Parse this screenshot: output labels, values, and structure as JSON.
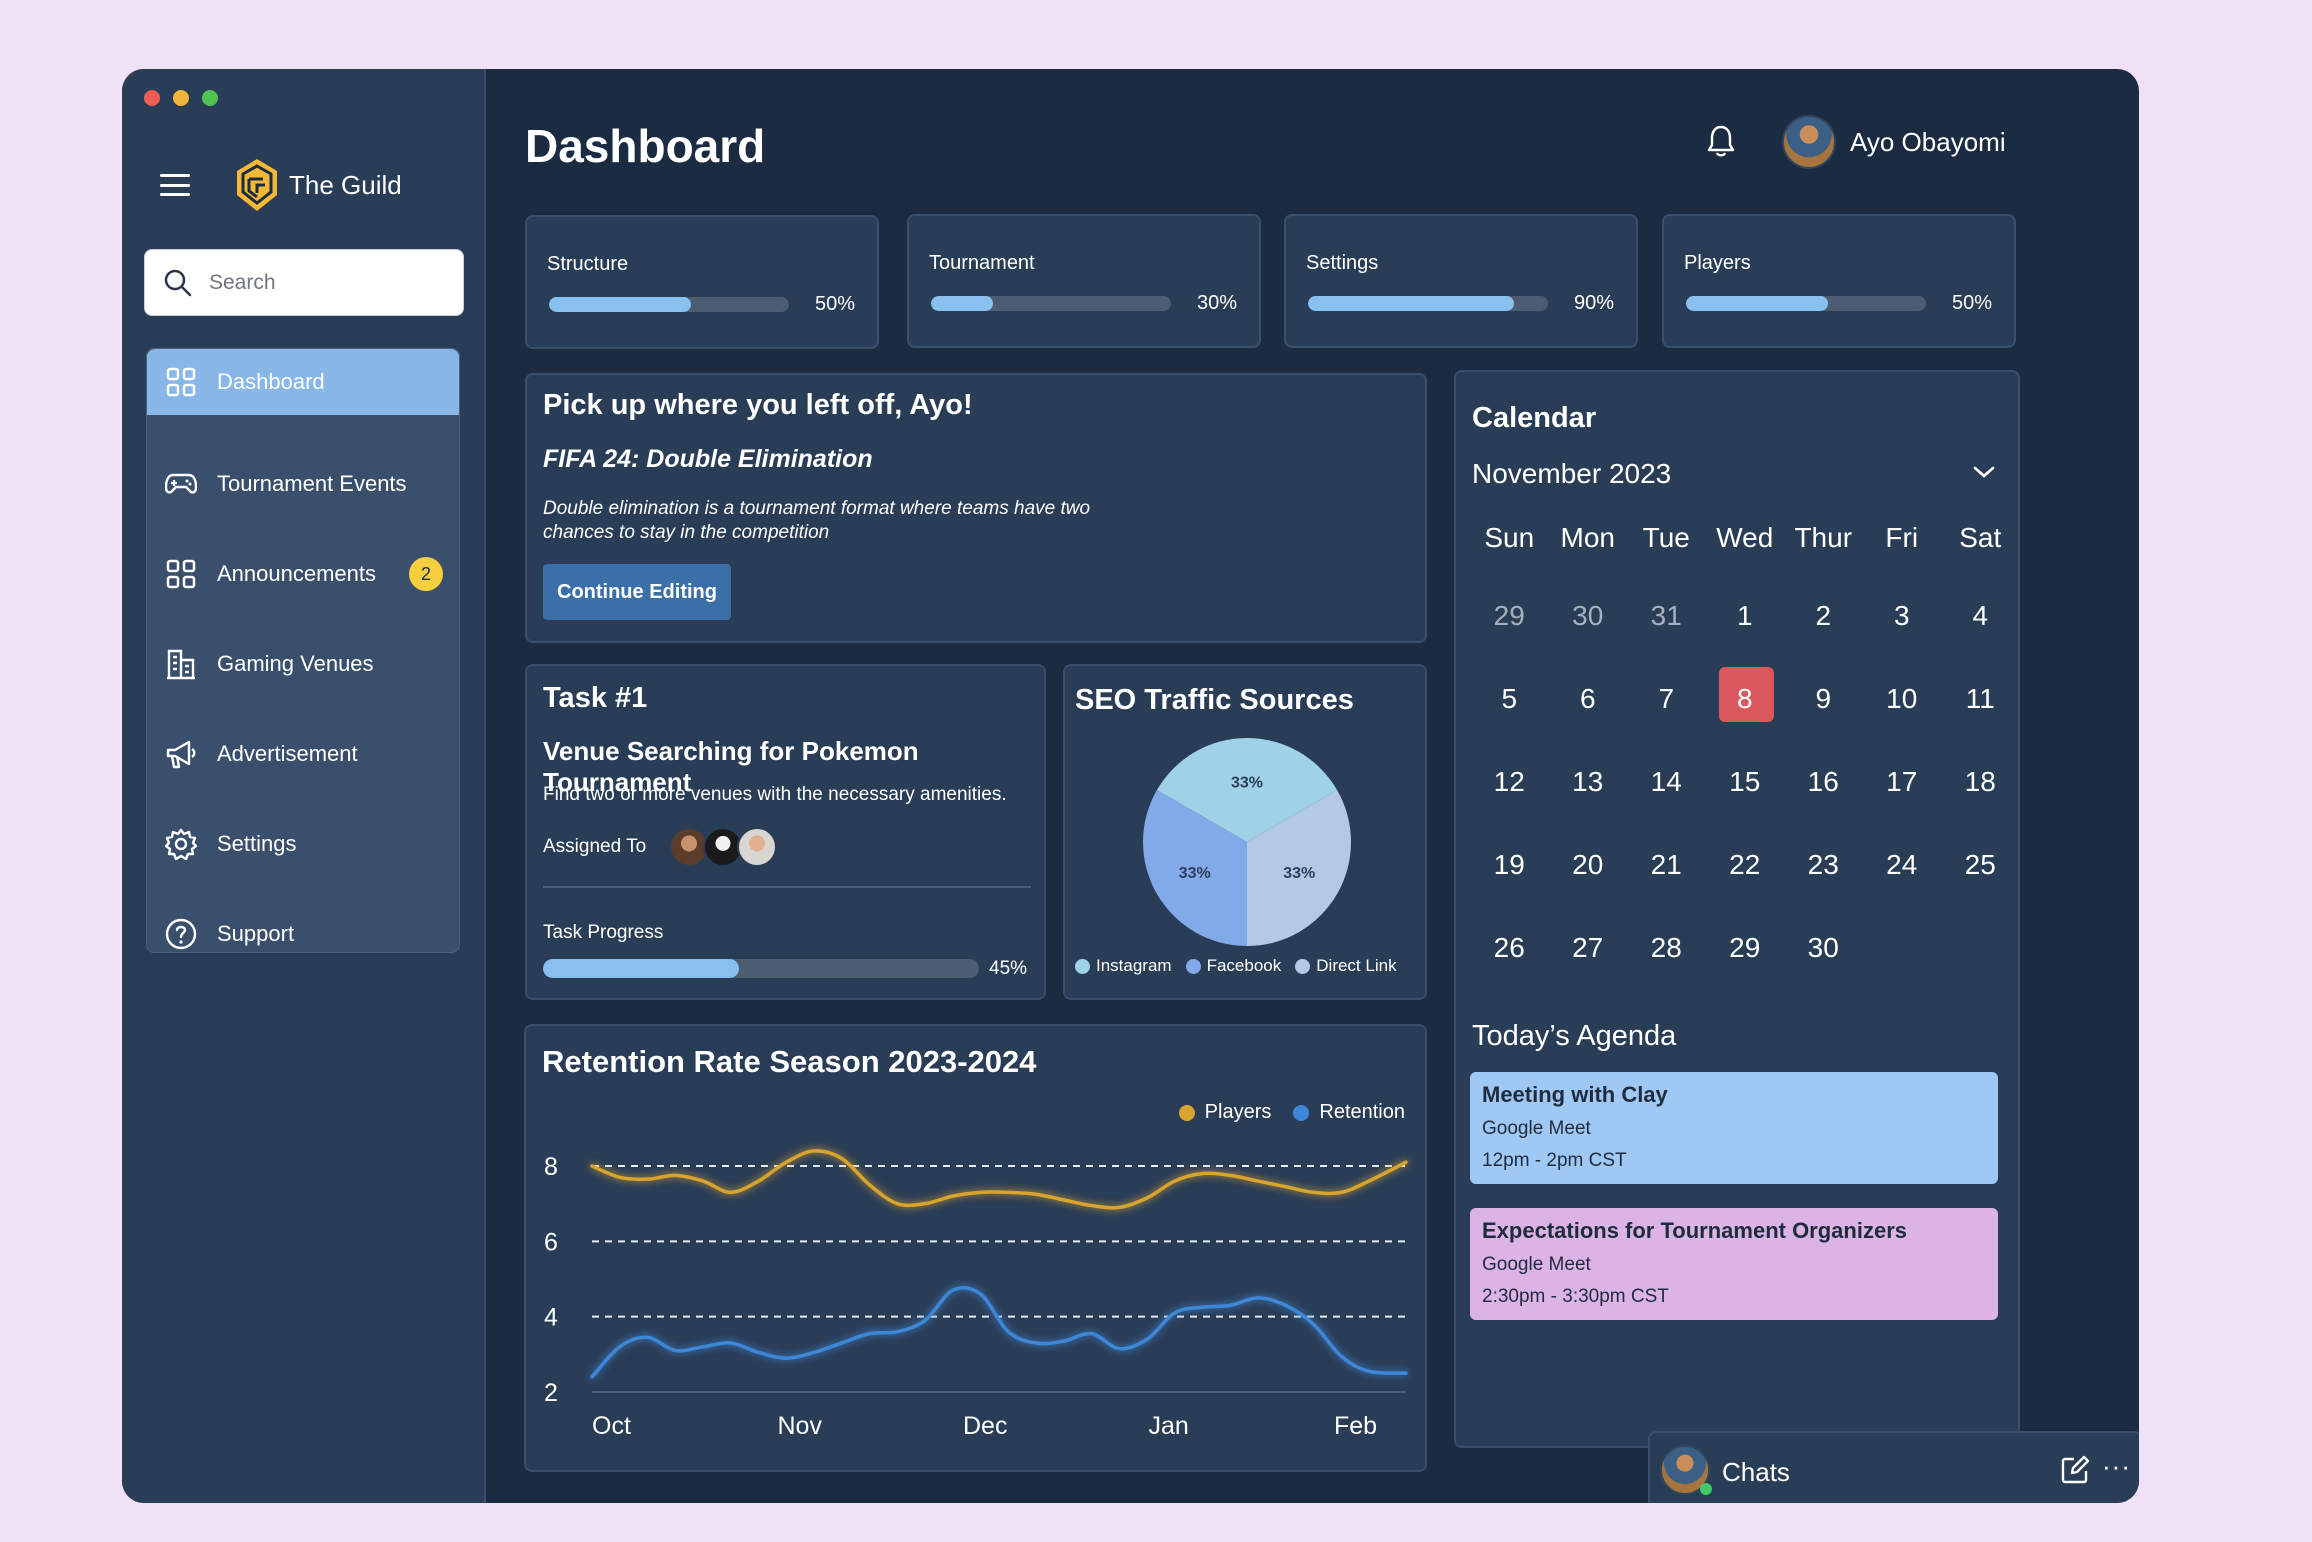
{
  "colors": {
    "accent": "#88b6e6",
    "window_bg": "#1b2b41",
    "card_bg": "#2a3d57",
    "badge": "#f5cf3e",
    "today": "#d8585c",
    "players_line": "#d9a42e",
    "retention_line": "#3e87d8",
    "event1_bg": "#a0c8f4",
    "event2_bg": "#dcb3e5"
  },
  "brand": {
    "name": "The Guild",
    "logo_icon": "guild-shield-logo"
  },
  "search": {
    "placeholder": "Search"
  },
  "sidebar": {
    "items": [
      {
        "label": "Dashboard",
        "icon": "grid-icon",
        "active": true
      },
      {
        "label": "Tournament Events",
        "icon": "gamepad-icon"
      },
      {
        "label": "Announcements",
        "icon": "grid-icon",
        "badge": "2"
      },
      {
        "label": "Gaming Venues",
        "icon": "building-icon"
      },
      {
        "label": "Advertisement",
        "icon": "megaphone-icon"
      },
      {
        "label": "Settings",
        "icon": "gear-icon"
      },
      {
        "label": "Support",
        "icon": "help-icon"
      }
    ]
  },
  "header": {
    "title": "Dashboard",
    "user_name": "Ayo Obayomi"
  },
  "stats": [
    {
      "label": "Structure",
      "pct_text": "50%",
      "value": 0.5
    },
    {
      "label": "Tournament",
      "pct_text": "30%",
      "value": 0.3
    },
    {
      "label": "Settings",
      "pct_text": "90%",
      "value": 0.9
    },
    {
      "label": "Players",
      "pct_text": "50%",
      "value": 0.5
    }
  ],
  "resume": {
    "title": "Pick up where you left off, Ayo!",
    "subtitle": "FIFA 24: Double Elimination",
    "description": "Double elimination is a tournament format where teams have two chances to stay in the competition",
    "button": "Continue Editing"
  },
  "task": {
    "title": "Task #1",
    "name": "Venue Searching for Pokemon Tournament",
    "description": "Find two or more venues with the necessary amenities.",
    "assigned_label": "Assigned To",
    "progress_label": "Task Progress",
    "progress_text": "45%",
    "progress": 0.45
  },
  "seo": {
    "title": "SEO Traffic Sources",
    "chart_data": {
      "type": "pie",
      "title": "SEO Traffic Sources",
      "labels": [
        "Instagram",
        "Facebook",
        "Direct Link"
      ],
      "values": [
        33,
        33,
        33
      ],
      "value_labels": [
        "33%",
        "33%",
        "33%"
      ],
      "colors": [
        "#9fd2e6",
        "#82aae8",
        "#b3c9e4"
      ],
      "legend": "bottom"
    }
  },
  "retention": {
    "title": "Retention Rate Season 2023-2024",
    "chart_data": {
      "type": "line",
      "title": "Retention Rate Season 2023-2024",
      "x_ticks": [
        "Oct",
        "Nov",
        "Dec",
        "Jan",
        "Feb"
      ],
      "y_ticks": [
        "8",
        "6",
        "4",
        "2"
      ],
      "ylim": [
        2,
        8
      ],
      "grid": "dashed horizontal",
      "legend": "top-right",
      "series": [
        {
          "name": "Players",
          "color": "#d9a42e",
          "x": [
            0,
            0.15,
            0.3,
            0.45,
            0.6,
            0.75,
            0.9,
            1.05,
            1.2,
            1.35,
            1.5,
            1.65,
            1.8,
            1.95,
            2.1,
            2.25,
            2.4,
            2.55,
            2.7,
            2.85,
            3.0,
            3.15,
            3.3,
            3.45,
            3.6,
            3.75,
            3.9,
            4.05,
            4.2,
            4.4
          ],
          "values": [
            8.0,
            7.7,
            7.65,
            7.75,
            7.6,
            7.3,
            7.6,
            8.1,
            8.4,
            8.2,
            7.5,
            7.0,
            7.0,
            7.2,
            7.3,
            7.3,
            7.25,
            7.1,
            6.95,
            6.9,
            7.15,
            7.6,
            7.8,
            7.75,
            7.6,
            7.45,
            7.3,
            7.3,
            7.6,
            8.1
          ]
        },
        {
          "name": "Retention",
          "color": "#3e87d8",
          "x": [
            0,
            0.15,
            0.3,
            0.45,
            0.6,
            0.75,
            0.9,
            1.05,
            1.2,
            1.35,
            1.5,
            1.65,
            1.8,
            1.95,
            2.1,
            2.25,
            2.4,
            2.55,
            2.7,
            2.85,
            3.0,
            3.15,
            3.3,
            3.45,
            3.6,
            3.75,
            3.9,
            4.05,
            4.2,
            4.4
          ],
          "values": [
            2.4,
            3.2,
            3.45,
            3.1,
            3.2,
            3.3,
            3.05,
            2.9,
            3.05,
            3.3,
            3.55,
            3.6,
            3.9,
            4.7,
            4.6,
            3.6,
            3.3,
            3.35,
            3.55,
            3.15,
            3.4,
            4.1,
            4.25,
            4.3,
            4.5,
            4.3,
            3.8,
            2.95,
            2.55,
            2.5
          ]
        }
      ]
    }
  },
  "calendar": {
    "title": "Calendar",
    "month": "November 2023",
    "weekdays": [
      "Sun",
      "Mon",
      "Tue",
      "Wed",
      "Thur",
      "Fri",
      "Sat"
    ],
    "weeks": [
      [
        "29",
        "30",
        "31",
        "1",
        "2",
        "3",
        "4"
      ],
      [
        "5",
        "6",
        "7",
        "8",
        "9",
        "10",
        "11"
      ],
      [
        "12",
        "13",
        "14",
        "15",
        "16",
        "17",
        "18"
      ],
      [
        "19",
        "20",
        "21",
        "22",
        "23",
        "24",
        "25"
      ],
      [
        "26",
        "27",
        "28",
        "29",
        "30",
        "",
        ""
      ]
    ],
    "today": "8",
    "agenda_title": "Today’s Agenda",
    "events": [
      {
        "title": "Meeting with Clay",
        "location": "Google Meet",
        "time": "12pm - 2pm CST"
      },
      {
        "title": "Expectations for Tournament Organizers",
        "location": "Google Meet",
        "time": "2:30pm - 3:30pm CST"
      }
    ]
  },
  "chats": {
    "label": "Chats",
    "more": "···"
  }
}
